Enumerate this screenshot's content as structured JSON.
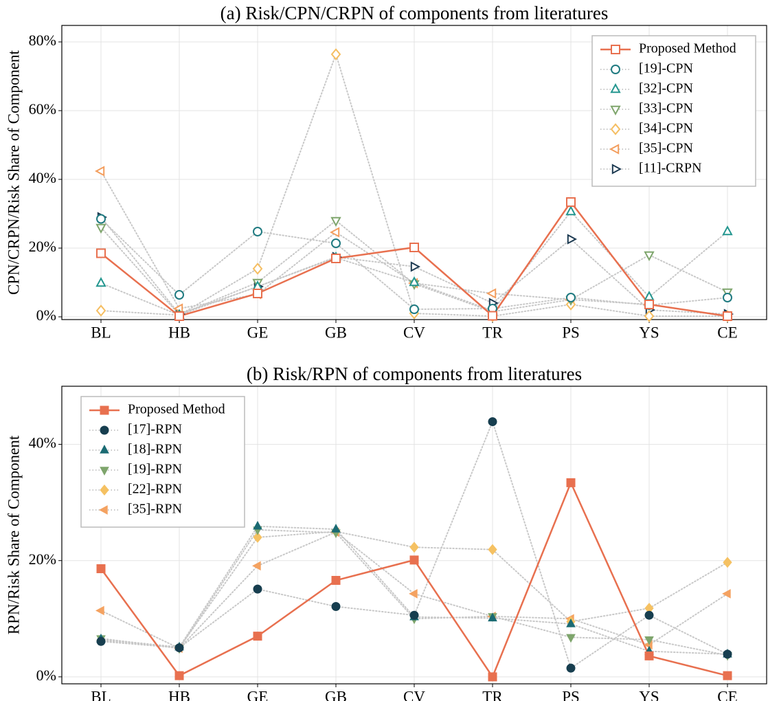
{
  "chart_data": [
    {
      "type": "line",
      "title": "(a) Risk/CPN/CRPN of components from literatures",
      "y_label": "CPN/CRPN/Risk Share of Component",
      "categories": [
        "BL",
        "HB",
        "GE",
        "GB",
        "CV",
        "TR",
        "PS",
        "YS",
        "CE"
      ],
      "ylim": [
        -0.8,
        84.8
      ],
      "yticks": [
        {
          "value": 0,
          "label": "0%"
        },
        {
          "value": 20,
          "label": "20%"
        },
        {
          "value": 40,
          "label": "40%"
        },
        {
          "value": 60,
          "label": "60%"
        },
        {
          "value": 80,
          "label": "80%"
        }
      ],
      "grid": true,
      "legend": "upper right",
      "filled_markers": false,
      "series": [
        {
          "name": "Proposed Method",
          "color": "#e8704f",
          "marker": "square",
          "linestyle": "solid",
          "values": [
            18.5,
            0.2,
            6.8,
            17,
            20.2,
            0.3,
            33.4,
            3.6,
            0.2
          ]
        },
        {
          "name": "[19]-CPN",
          "color": "#1f7a80",
          "marker": "circle",
          "linestyle": "dotted",
          "values": [
            28.5,
            6.4,
            24.8,
            21.4,
            2.2,
            2.4,
            5.6,
            3.4,
            5.6
          ]
        },
        {
          "name": "[32]-CPN",
          "color": "#23968f",
          "marker": "triangle-up",
          "linestyle": "dotted",
          "values": [
            9.8,
            0.5,
            8.8,
            17.2,
            10,
            1.8,
            30.6,
            5.8,
            24.8
          ]
        },
        {
          "name": "[33]-CPN",
          "color": "#7ea56c",
          "marker": "triangle-down",
          "linestyle": "dotted",
          "values": [
            26,
            0.6,
            10,
            28,
            9.6,
            1.5,
            5,
            18,
            7.2
          ]
        },
        {
          "name": "[34]-CPN",
          "color": "#f5be62",
          "marker": "diamond",
          "linestyle": "dotted",
          "values": [
            1.8,
            0.5,
            14,
            76.4,
            1,
            0.2,
            3.6,
            0.2,
            0.2
          ]
        },
        {
          "name": "[35]-CPN",
          "color": "#f39e5e",
          "marker": "triangle-left",
          "linestyle": "dotted",
          "values": [
            42.4,
            2.4,
            6.6,
            24.6,
            9.8,
            6.8,
            5,
            3.6,
            0.2
          ]
        },
        {
          "name": "[11]-CRPN",
          "color": "#1d3b52",
          "marker": "triangle-right",
          "linestyle": "dotted",
          "values": [
            29,
            0.8,
            8.8,
            17.4,
            14.6,
            4,
            22.6,
            2,
            0.8
          ]
        }
      ]
    },
    {
      "type": "line",
      "title": "(b) Risk/RPN of components from literatures",
      "y_label": "RPN/Risk Share of Component",
      "categories": [
        "BL",
        "HB",
        "GE",
        "GB",
        "CV",
        "TR",
        "PS",
        "YS",
        "CE"
      ],
      "ylim": [
        -1.2,
        50
      ],
      "yticks": [
        {
          "value": 0,
          "label": "0%"
        },
        {
          "value": 20,
          "label": "20%"
        },
        {
          "value": 40,
          "label": "40%"
        }
      ],
      "grid": true,
      "legend": "upper left",
      "filled_markers": true,
      "series": [
        {
          "name": "Proposed Method",
          "color": "#e8704f",
          "marker": "square",
          "linestyle": "solid",
          "values": [
            18.6,
            0.2,
            7,
            16.6,
            20.1,
            0,
            33.4,
            3.6,
            0.2
          ]
        },
        {
          "name": "[17]-RPN",
          "color": "#173e4f",
          "marker": "circle",
          "linestyle": "dotted",
          "values": [
            6.1,
            5,
            15.1,
            12.1,
            10.6,
            43.9,
            1.5,
            10.6,
            3.9
          ]
        },
        {
          "name": "[18]-RPN",
          "color": "#1b6b73",
          "marker": "triangle-up",
          "linestyle": "dotted",
          "values": [
            6.5,
            5.1,
            25.9,
            25.4,
            10.3,
            10.1,
            9.1,
            4.4,
            3.9
          ]
        },
        {
          "name": "[19]-RPN",
          "color": "#7ea56c",
          "marker": "triangle-down",
          "linestyle": "dotted",
          "values": [
            6.6,
            4.9,
            25.3,
            24.8,
            10,
            10.4,
            6.8,
            6.4,
            3.7
          ]
        },
        {
          "name": "[22]-RPN",
          "color": "#f5c162",
          "marker": "diamond",
          "linestyle": "dotted",
          "values": [
            6.3,
            5,
            24,
            25,
            22.3,
            21.9,
            9.5,
            11.8,
            19.7
          ]
        },
        {
          "name": "[35]-RPN",
          "color": "#f4a261",
          "marker": "triangle-left",
          "linestyle": "dotted",
          "values": [
            11.4,
            4.9,
            19.1,
            24.9,
            14.3,
            10.4,
            10,
            5.5,
            14.3
          ]
        }
      ]
    }
  ]
}
